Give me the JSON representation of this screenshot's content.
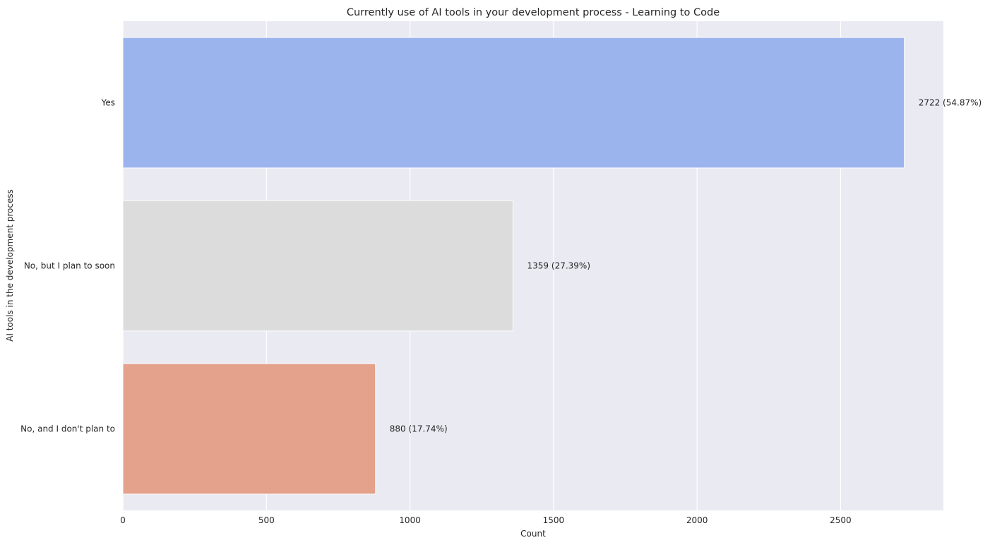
{
  "chart_data": {
    "type": "bar",
    "orientation": "horizontal",
    "title": "Currently use of AI tools in your development process - Learning to Code",
    "xlabel": "Count",
    "ylabel": "AI tools in the development process",
    "categories": [
      "Yes",
      "No, but I plan to soon",
      "No, and I don't plan to"
    ],
    "values": [
      2722,
      1359,
      880
    ],
    "data_labels": [
      "2722 (54.87%)",
      "1359 (27.39%)",
      "880 (17.74%)"
    ],
    "colors": [
      "#9bb4ee",
      "#dcdcdc",
      "#e4a18b"
    ],
    "xlim": [
      0,
      2858
    ],
    "xticks": [
      0,
      500,
      1000,
      1500,
      2000,
      2500
    ],
    "grid": true,
    "background": "#eaeaf2"
  }
}
